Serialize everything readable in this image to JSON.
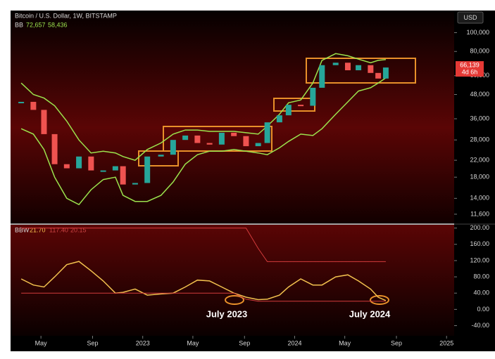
{
  "chart_data": [
    {
      "type": "candlestick",
      "title": "Bitcoin / U.S. Dollar, 1W, BITSTAMP",
      "currency": "USD",
      "bb_label": "BB",
      "bb_value_labels": [
        "72,657",
        "58,436"
      ],
      "last_label": "66,139",
      "countdown": "4d 6h",
      "log_scale": true,
      "up_color": "#26a69a",
      "down_color": "#ef5350",
      "band_color": "#9be34d",
      "x": [
        2022.2,
        2022.28,
        2022.35,
        2022.42,
        2022.5,
        2022.58,
        2022.66,
        2022.74,
        2022.82,
        2022.87,
        2022.95,
        2023.03,
        2023.12,
        2023.2,
        2023.28,
        2023.36,
        2023.44,
        2023.52,
        2023.6,
        2023.68,
        2023.76,
        2023.82,
        2023.9,
        2023.96,
        2024.04,
        2024.12,
        2024.18,
        2024.27,
        2024.35,
        2024.42,
        2024.5,
        2024.55,
        2024.6
      ],
      "close": [
        44000,
        40000,
        30000,
        21000,
        20000,
        23000,
        19500,
        19500,
        20500,
        16500,
        16800,
        23000,
        23500,
        28000,
        29500,
        27000,
        26500,
        30500,
        29300,
        26000,
        27000,
        34500,
        37500,
        42500,
        42000,
        52000,
        68000,
        70000,
        64000,
        68000,
        62000,
        58000,
        66139
      ],
      "upper": [
        55000,
        48000,
        46000,
        42000,
        35000,
        28000,
        24000,
        24500,
        24000,
        23000,
        22000,
        25000,
        27000,
        30000,
        31500,
        31500,
        31000,
        31000,
        31000,
        30500,
        30000,
        33000,
        38000,
        43500,
        45000,
        55000,
        72000,
        78000,
        76000,
        73000,
        70000,
        72000,
        72657
      ],
      "lower": [
        32000,
        30000,
        25000,
        18000,
        14000,
        13000,
        15500,
        17500,
        18000,
        14500,
        13500,
        13500,
        14500,
        17000,
        21000,
        23500,
        24500,
        24500,
        25000,
        24500,
        24000,
        23500,
        25500,
        27500,
        30000,
        29500,
        32000,
        38000,
        44000,
        50000,
        52000,
        55000,
        58436
      ],
      "xlim": [
        2022.13,
        2025.05
      ],
      "ylim": [
        10400,
        130000
      ],
      "yticks": [
        {
          "value": 11600,
          "label": "11,600"
        },
        {
          "value": 14000,
          "label": "14,000"
        },
        {
          "value": 18000,
          "label": "18,000"
        },
        {
          "value": 22000,
          "label": "22,000"
        },
        {
          "value": 28000,
          "label": "28,000"
        },
        {
          "value": 36000,
          "label": "36,000"
        },
        {
          "value": 48000,
          "label": "48,000"
        },
        {
          "value": 60000,
          "label": "60,000"
        },
        {
          "value": 80000,
          "label": "80,000"
        },
        {
          "value": 100000,
          "label": "100,000"
        }
      ]
    },
    {
      "type": "line",
      "x": [
        2022.2,
        2022.28,
        2022.35,
        2022.42,
        2022.5,
        2022.58,
        2022.66,
        2022.74,
        2022.82,
        2022.87,
        2022.95,
        2023.03,
        2023.12,
        2023.2,
        2023.28,
        2023.36,
        2023.44,
        2023.52,
        2023.6,
        2023.68,
        2023.76,
        2023.82,
        2023.9,
        2023.96,
        2024.04,
        2024.12,
        2024.18,
        2024.27,
        2024.35,
        2024.42,
        2024.5,
        2024.55,
        2024.6
      ],
      "series": [
        {
          "name": "BBW",
          "color": "#f2c14e",
          "values": [
            75,
            60,
            55,
            80,
            110,
            118,
            95,
            70,
            40,
            42,
            50,
            35,
            38,
            40,
            55,
            72,
            70,
            55,
            40,
            30,
            24,
            25,
            35,
            55,
            75,
            60,
            60,
            80,
            85,
            70,
            50,
            30,
            21.7
          ]
        },
        {
          "color": "#d33c3c",
          "values": [
            200,
            200,
            200,
            200,
            200,
            200,
            200,
            200,
            200,
            200,
            200,
            200,
            200,
            200,
            200,
            200,
            200,
            200,
            200,
            200,
            150,
            117.4,
            117.4,
            117.4,
            117.4,
            117.4,
            117.4,
            117.4,
            117.4,
            117.4,
            117.4,
            117.4,
            117.4
          ]
        },
        {
          "color": "#d33c3c",
          "values": [
            40,
            40,
            40,
            40,
            40,
            40,
            40,
            40,
            40,
            40,
            40,
            40,
            40,
            40,
            40,
            40,
            40,
            40,
            40,
            25,
            20.15,
            20.15,
            20.15,
            20.15,
            20.15,
            20.15,
            20.15,
            20.15,
            20.15,
            20.15,
            20.15,
            20.15,
            20.15
          ]
        }
      ],
      "legend_value_labels": [
        "21.70",
        "117.40",
        "20.15"
      ],
      "annotations": [
        "July 2023",
        "July 2024"
      ],
      "xlim": [
        2022.13,
        2025.05
      ],
      "ylim": [
        -65,
        208
      ],
      "xticks": [
        {
          "value": 2022.33,
          "label": "May"
        },
        {
          "value": 2022.67,
          "label": "Sep"
        },
        {
          "value": 2023,
          "label": "2023"
        },
        {
          "value": 2023.33,
          "label": "May"
        },
        {
          "value": 2023.67,
          "label": "Sep"
        },
        {
          "value": 2024,
          "label": "2024"
        },
        {
          "value": 2024.33,
          "label": "May"
        },
        {
          "value": 2024.67,
          "label": "Sep"
        },
        {
          "value": 2025,
          "label": "2025"
        }
      ],
      "yticks": [
        {
          "value": -40,
          "label": "-40.00"
        },
        {
          "value": 0,
          "label": "0.00"
        },
        {
          "value": 40,
          "label": "40.00"
        },
        {
          "value": 80,
          "label": "80.00"
        },
        {
          "value": 120,
          "label": "120.00"
        },
        {
          "value": 160,
          "label": "160.00"
        },
        {
          "value": 200,
          "label": "200.00"
        }
      ]
    }
  ]
}
